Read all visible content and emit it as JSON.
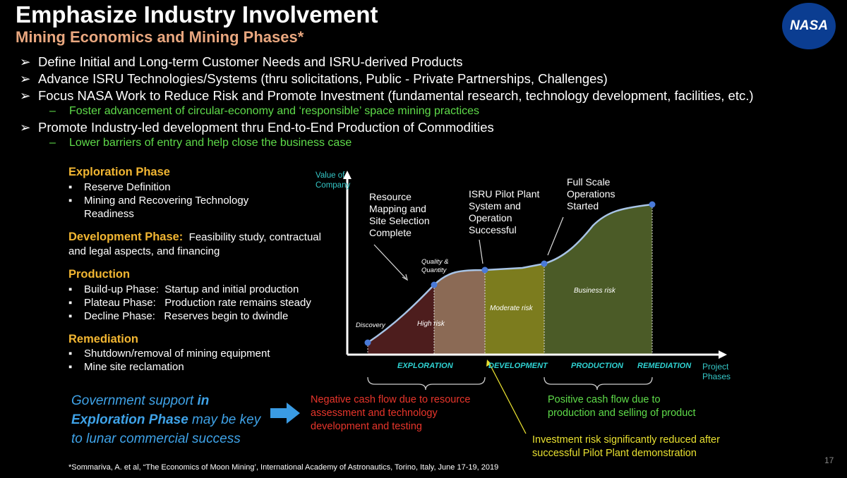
{
  "title": "Emphasize Industry Involvement",
  "subtitle": "Mining Economics and Mining Phases*",
  "bullets": [
    "Define Initial and Long-term Customer Needs and ISRU-derived Products",
    "Advance ISRU Technologies/Systems (thru solicitations, Public - Private Partnerships, Challenges)",
    "Focus NASA Work to Reduce Risk and Promote Investment (fundamental research, technology development, facilities, etc.)",
    "Foster advancement of circular-economy and  ‘responsible’ space mining practices",
    "Promote Industry-led development thru End-to-End Production of Commodities",
    "Lower barriers of entry and help close the business case"
  ],
  "phases": {
    "exploration": {
      "title": "Exploration Phase",
      "items": [
        "Reserve Definition",
        "Mining and Recovering Technology",
        "Readiness"
      ]
    },
    "development": {
      "title": "Development Phase:",
      "text1": "Feasibility study, contractual",
      "text2": "and legal aspects, and financing"
    },
    "production": {
      "title": "Production",
      "items": [
        "Build-up Phase:  Startup and initial production",
        "Plateau Phase:   Production rate remains steady",
        "Decline Phase:   Reserves begin to dwindle"
      ]
    },
    "remediation": {
      "title": "Remediation",
      "items": [
        "Shutdown/removal of mining equipment",
        "Mine site reclamation"
      ]
    }
  },
  "gov": {
    "l1a": "Government support ",
    "l1b": "in",
    "l2a": "Exploration Phase",
    "l2b": " may be key",
    "l3": "to lunar commercial success"
  },
  "diagram": {
    "y_axis": [
      "Value of",
      "Company"
    ],
    "x_axis": [
      "Project",
      "Phases"
    ],
    "ann1": [
      "Resource",
      "Mapping and",
      "Site Selection",
      "Complete"
    ],
    "ann2": [
      "ISRU Pilot Plant",
      "System and",
      "Operation",
      "Successful"
    ],
    "ann3": [
      "Full Scale",
      "Operations",
      "Started"
    ],
    "points": [
      "Discovery",
      "Quality &",
      "Quantity"
    ],
    "risks": [
      "High risk",
      "Moderate risk",
      "Business risk"
    ],
    "phases": [
      "EXPLORATION",
      "DEVELOPMENT",
      "PRODUCTION",
      "REMEDIATION"
    ],
    "neg": [
      "Negative cash flow due to resource",
      "assessment and technology",
      "development and testing"
    ],
    "pos": [
      "Positive cash flow due to",
      "production and selling of product"
    ],
    "inv": [
      "Investment risk significantly reduced after",
      "successful Pilot Plant demonstration"
    ]
  },
  "footnote": "*Sommariva, A. et al, “The Economics of Moon Mining’, International Academy of Astronautics, Torino, Italy, June 17-19, 2019",
  "page": "17",
  "logo": "NASA"
}
